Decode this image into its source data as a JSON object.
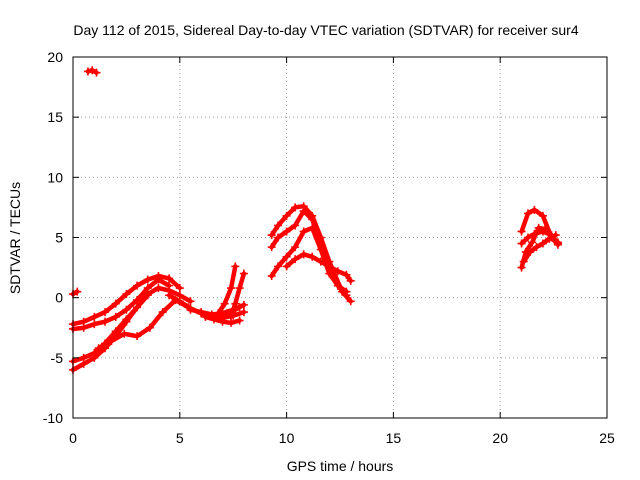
{
  "chart_data": {
    "type": "scatter",
    "title": "Day 112 of 2015, Sidereal Day-to-day VTEC variation (SDTVAR) for receiver sur4",
    "xlabel": "GPS time / hours",
    "ylabel": "SDTVAR / TECUs",
    "xlim": [
      0,
      25
    ],
    "ylim": [
      -10,
      20
    ],
    "xticks": [
      "0",
      "5",
      "10",
      "15",
      "20",
      "25"
    ],
    "yticks": [
      "-10",
      "-5",
      "0",
      "5",
      "10",
      "15",
      "20"
    ],
    "grid": true,
    "marker": "plus",
    "color": "#ff0000",
    "series": [
      {
        "x": [
          0.0,
          0.2
        ],
        "y": [
          0.3,
          0.5
        ]
      },
      {
        "x": [
          0.7,
          0.9,
          1.1
        ],
        "y": [
          18.8,
          18.9,
          18.7
        ]
      },
      {
        "x": [
          0.0,
          0.5,
          1.0,
          1.5,
          2.0,
          2.5,
          3.0,
          3.5,
          4.0,
          4.5
        ],
        "y": [
          -2.6,
          -2.5,
          -2.2,
          -2.0,
          -1.6,
          -1.0,
          -0.2,
          0.8,
          1.5,
          1.0
        ]
      },
      {
        "x": [
          0.0,
          0.5,
          1.0,
          1.5,
          2.0,
          2.5,
          3.0,
          3.5,
          4.0,
          4.5,
          5.0
        ],
        "y": [
          -2.2,
          -2.0,
          -1.6,
          -1.2,
          -0.5,
          0.3,
          1.0,
          1.5,
          1.8,
          1.6,
          0.8
        ]
      },
      {
        "x": [
          0.0,
          0.5,
          1.0,
          1.5,
          2.0,
          2.5,
          3.0,
          3.5,
          4.0,
          4.5,
          5.0,
          5.5
        ],
        "y": [
          -6.0,
          -5.5,
          -5.0,
          -4.2,
          -3.2,
          -2.0,
          -0.8,
          0.3,
          0.8,
          0.6,
          0.2,
          -0.3
        ]
      },
      {
        "x": [
          0.0,
          0.5,
          1.0,
          1.5,
          2.0,
          2.5,
          3.0,
          3.5
        ],
        "y": [
          -5.3,
          -5.0,
          -4.6,
          -3.8,
          -2.8,
          -1.8,
          -0.8,
          0.2
        ]
      },
      {
        "x": [
          1.2,
          1.8,
          2.4,
          3.0,
          3.6,
          4.2,
          4.8,
          5.4,
          6.0,
          6.6,
          7.2,
          7.6,
          7.8
        ],
        "y": [
          -4.2,
          -3.6,
          -3.0,
          -3.2,
          -2.5,
          -1.2,
          -0.2,
          -0.8,
          -1.3,
          -1.6,
          -1.3,
          -1.0,
          -0.8
        ]
      },
      {
        "x": [
          4.5,
          5.0,
          5.5,
          6.0,
          6.5,
          7.0,
          7.5,
          8.0
        ],
        "y": [
          0.2,
          -0.3,
          -0.9,
          -1.3,
          -1.6,
          -1.7,
          -1.5,
          -1.2
        ]
      },
      {
        "x": [
          5.5,
          6.0,
          6.5,
          7.0,
          7.5,
          8.0
        ],
        "y": [
          -1.0,
          -1.2,
          -1.4,
          -1.3,
          -1.0,
          -0.6
        ]
      },
      {
        "x": [
          6.2,
          6.6,
          7.0,
          7.4,
          7.8
        ],
        "y": [
          -1.6,
          -1.8,
          -2.0,
          -2.1,
          -1.9
        ]
      },
      {
        "x": [
          6.8,
          7.1,
          7.4,
          7.6
        ],
        "y": [
          -1.3,
          -0.5,
          0.8,
          2.6
        ]
      },
      {
        "x": [
          7.4,
          7.6,
          7.8,
          8.0
        ],
        "y": [
          -1.5,
          -0.5,
          0.8,
          2.0
        ]
      },
      {
        "x": [
          9.3,
          9.6,
          10.0,
          10.4,
          10.8,
          11.2,
          11.6,
          12.0,
          12.4,
          12.8
        ],
        "y": [
          1.8,
          2.6,
          3.4,
          4.2,
          5.5,
          5.8,
          4.0,
          2.0,
          1.0,
          0.5
        ]
      },
      {
        "x": [
          9.3,
          9.6,
          10.0,
          10.4,
          10.8,
          11.2,
          11.6,
          12.0,
          12.4,
          12.8
        ],
        "y": [
          4.2,
          5.0,
          5.5,
          6.0,
          7.2,
          6.5,
          4.5,
          2.5,
          1.0,
          0.2
        ]
      },
      {
        "x": [
          9.3,
          9.6,
          10.0,
          10.4,
          10.8,
          11.2,
          11.6,
          12.0,
          12.6,
          13.0
        ],
        "y": [
          5.2,
          6.0,
          6.8,
          7.5,
          7.6,
          6.8,
          5.0,
          3.0,
          0.5,
          -0.3
        ]
      },
      {
        "x": [
          10.0,
          10.4,
          10.8,
          11.2,
          11.6,
          12.0,
          12.4,
          12.8,
          13.0
        ],
        "y": [
          2.6,
          3.2,
          3.6,
          3.4,
          3.0,
          2.6,
          2.2,
          1.9,
          1.4
        ]
      },
      {
        "x": [
          21.0,
          21.3,
          21.6,
          22.0,
          22.4,
          22.7
        ],
        "y": [
          5.5,
          7.0,
          7.3,
          6.8,
          5.0,
          4.6
        ]
      },
      {
        "x": [
          21.0,
          21.3,
          21.6,
          22.0,
          22.4,
          22.7
        ],
        "y": [
          4.5,
          5.0,
          5.3,
          5.5,
          5.2,
          4.5
        ]
      },
      {
        "x": [
          21.0,
          21.2,
          21.5,
          21.8,
          22.1,
          22.4,
          22.7
        ],
        "y": [
          2.5,
          3.8,
          4.6,
          5.8,
          5.7,
          5.0,
          4.4
        ]
      },
      {
        "x": [
          21.1,
          21.4,
          21.7,
          22.0,
          22.3,
          22.6
        ],
        "y": [
          3.0,
          3.8,
          4.2,
          4.5,
          4.9,
          5.2
        ]
      }
    ]
  }
}
